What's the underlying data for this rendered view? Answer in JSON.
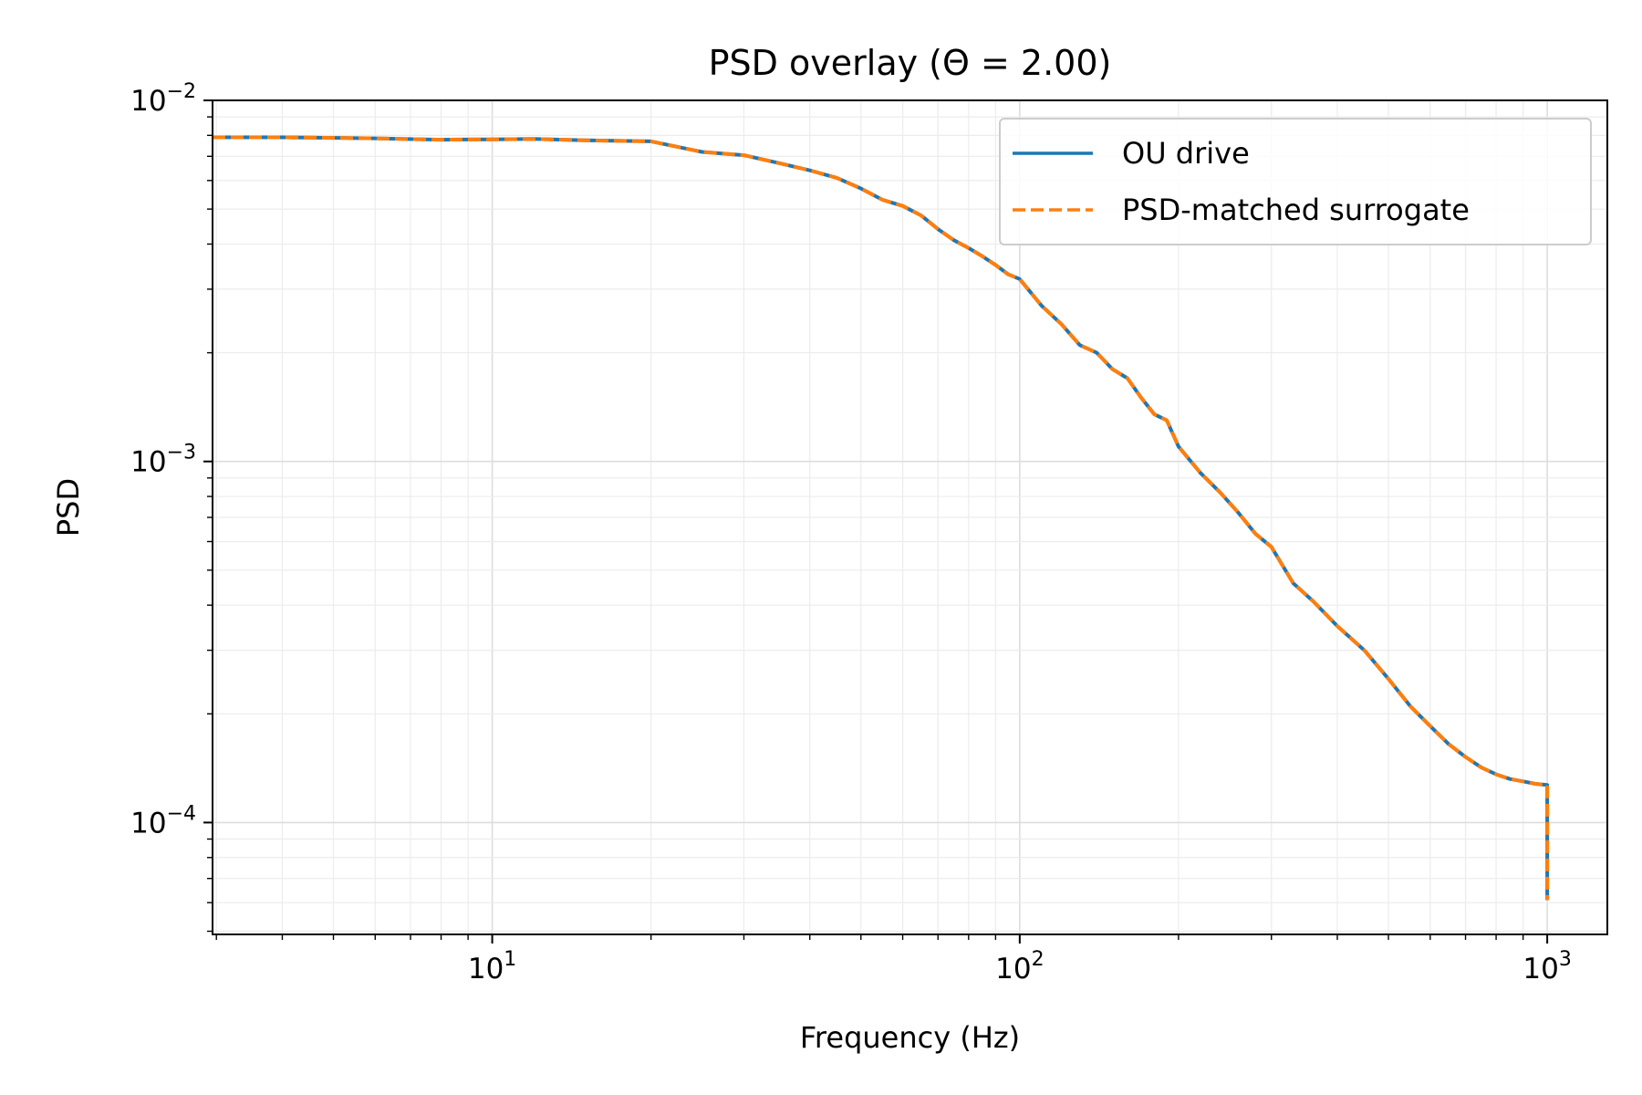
{
  "chart_data": {
    "type": "line",
    "title": "PSD overlay (Θ = 2.00)",
    "xlabel": "Frequency (Hz)",
    "ylabel": "PSD",
    "xscale": "log",
    "yscale": "log",
    "xlim": [
      2.95,
      1300
    ],
    "ylim": [
      4.9e-05,
      0.01
    ],
    "grid": true,
    "legend_position": "top-right",
    "x_ticks": [
      {
        "value": 10,
        "base": "10",
        "exp": "1"
      },
      {
        "value": 100,
        "base": "10",
        "exp": "2"
      },
      {
        "value": 1000,
        "base": "10",
        "exp": "3"
      }
    ],
    "y_ticks": [
      {
        "value": 0.01,
        "base": "10",
        "exp": "−2"
      },
      {
        "value": 0.001,
        "base": "10",
        "exp": "−3"
      },
      {
        "value": 0.0001,
        "base": "10",
        "exp": "−4"
      }
    ],
    "series": [
      {
        "name": "OU drive",
        "color": "#1f77b4",
        "dash": "solid",
        "x": [
          2.95,
          4,
          6,
          8,
          10,
          12,
          15,
          20,
          25,
          30,
          35,
          40,
          45,
          50,
          55,
          60,
          65,
          70,
          75,
          80,
          85,
          90,
          95,
          100,
          110,
          120,
          130,
          140,
          150,
          160,
          170,
          180,
          190,
          200,
          220,
          240,
          260,
          280,
          300,
          330,
          360,
          400,
          450,
          500,
          550,
          600,
          650,
          700,
          750,
          800,
          850,
          900,
          950,
          1000,
          1000
        ],
        "y": [
          0.0079,
          0.0079,
          0.00785,
          0.00778,
          0.0078,
          0.00782,
          0.00775,
          0.0077,
          0.0072,
          0.00705,
          0.0067,
          0.0064,
          0.0061,
          0.0057,
          0.0053,
          0.0051,
          0.0048,
          0.0044,
          0.0041,
          0.0039,
          0.0037,
          0.0035,
          0.0033,
          0.0032,
          0.0027,
          0.0024,
          0.0021,
          0.002,
          0.0018,
          0.0017,
          0.0015,
          0.00135,
          0.0013,
          0.0011,
          0.00093,
          0.00082,
          0.00072,
          0.00063,
          0.00058,
          0.00046,
          0.00041,
          0.00035,
          0.0003,
          0.00025,
          0.00021,
          0.000185,
          0.000165,
          0.000152,
          0.000142,
          0.000136,
          0.000132,
          0.00013,
          0.000128,
          0.000127,
          6.1e-05
        ]
      },
      {
        "name": "PSD-matched surrogate",
        "color": "#ff7f0e",
        "dash": "dashed",
        "x": [
          2.95,
          4,
          6,
          8,
          10,
          12,
          15,
          20,
          25,
          30,
          35,
          40,
          45,
          50,
          55,
          60,
          65,
          70,
          75,
          80,
          85,
          90,
          95,
          100,
          110,
          120,
          130,
          140,
          150,
          160,
          170,
          180,
          190,
          200,
          220,
          240,
          260,
          280,
          300,
          330,
          360,
          400,
          450,
          500,
          550,
          600,
          650,
          700,
          750,
          800,
          850,
          900,
          950,
          1000,
          1000
        ],
        "y": [
          0.0079,
          0.0079,
          0.00785,
          0.00778,
          0.0078,
          0.00782,
          0.00775,
          0.0077,
          0.0072,
          0.00705,
          0.0067,
          0.0064,
          0.0061,
          0.0057,
          0.0053,
          0.0051,
          0.0048,
          0.0044,
          0.0041,
          0.0039,
          0.0037,
          0.0035,
          0.0033,
          0.0032,
          0.0027,
          0.0024,
          0.0021,
          0.002,
          0.0018,
          0.0017,
          0.0015,
          0.00135,
          0.0013,
          0.0011,
          0.00093,
          0.00082,
          0.00072,
          0.00063,
          0.00058,
          0.00046,
          0.00041,
          0.00035,
          0.0003,
          0.00025,
          0.00021,
          0.000185,
          0.000165,
          0.000152,
          0.000142,
          0.000136,
          0.000132,
          0.00013,
          0.000128,
          0.000127,
          6.1e-05
        ]
      }
    ]
  }
}
